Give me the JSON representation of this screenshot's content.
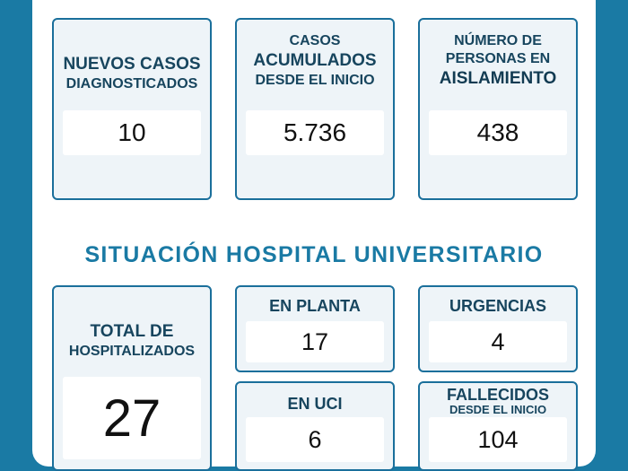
{
  "top_cards": [
    {
      "label_lines": [
        "NUEVOS CASOS",
        "DIAGNOSTICADOS"
      ],
      "value": "10"
    },
    {
      "label_lines": [
        "CASOS",
        "ACUMULADOS",
        "DESDE EL INICIO"
      ],
      "value": "5.736"
    },
    {
      "label_lines": [
        "NÚMERO DE",
        "PERSONAS EN",
        "AISLAMIENTO"
      ],
      "value": "438"
    }
  ],
  "section_title": "SITUACIÓN HOSPITAL UNIVERSITARIO",
  "hospital": {
    "total": {
      "label_lines": [
        "TOTAL DE",
        "HOSPITALIZADOS"
      ],
      "value": "27"
    },
    "planta": {
      "label": "EN PLANTA",
      "value": "17"
    },
    "urgencias": {
      "label": "URGENCIAS",
      "value": "4"
    },
    "uci": {
      "label": "EN UCI",
      "value": "6"
    },
    "fallecidos": {
      "label_lines": [
        "FALLECIDOS",
        "DESDE EL INICIO"
      ],
      "value": "104"
    }
  },
  "colors": {
    "background": "#1a7aa4",
    "card_border": "#1a6f9b",
    "text_dark": "#17455e"
  }
}
